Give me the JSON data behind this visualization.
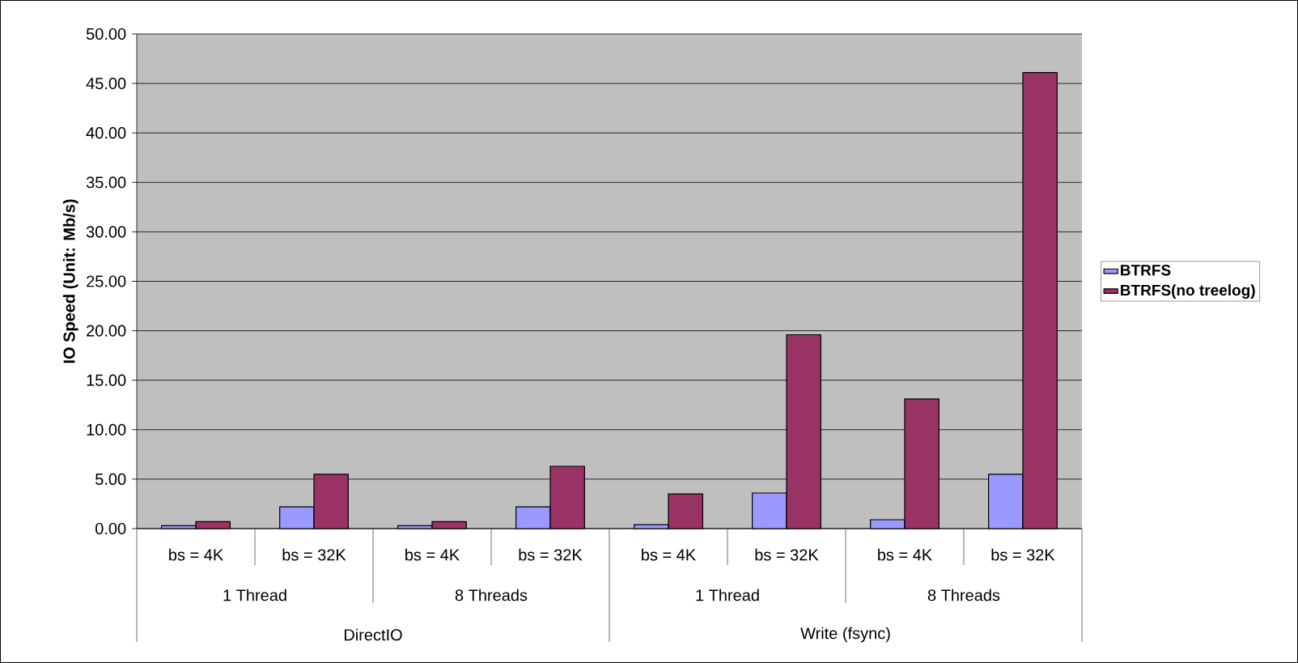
{
  "chart_data": {
    "type": "bar",
    "ylabel": "IO Speed (Unit: Mb/s)",
    "categories": [
      "bs = 4K",
      "bs = 32K",
      "bs = 4K",
      "bs = 32K",
      "bs = 4K",
      "bs = 32K",
      "bs = 4K",
      "bs = 32K"
    ],
    "series": [
      {
        "name": "BTRFS",
        "color": "#9999ff",
        "values": [
          0.3,
          2.2,
          0.3,
          2.2,
          0.4,
          3.6,
          0.9,
          5.5
        ]
      },
      {
        "name": "BTRFS(no treelog)",
        "color": "#993366",
        "values": [
          0.7,
          5.5,
          0.7,
          6.3,
          3.5,
          19.6,
          13.1,
          46.1
        ]
      }
    ],
    "annotations": [
      "1 Thread",
      "8 Threads",
      "1 Thread",
      "8 Threads",
      "DirectIO",
      "Write (fsync)"
    ],
    "ylim": [
      0,
      50
    ],
    "yticks": [
      {
        "value": 0,
        "label": "0.00"
      },
      {
        "value": 5,
        "label": "5.00"
      },
      {
        "value": 10,
        "label": "10.00"
      },
      {
        "value": 15,
        "label": "15.00"
      },
      {
        "value": 20,
        "label": "20.00"
      },
      {
        "value": 25,
        "label": "25.00"
      },
      {
        "value": 30,
        "label": "30.00"
      },
      {
        "value": 35,
        "label": "35.00"
      },
      {
        "value": 40,
        "label": "40.00"
      },
      {
        "value": 45,
        "label": "45.00"
      },
      {
        "value": 50,
        "label": "50.00"
      }
    ],
    "grid": "y",
    "legend": "right"
  }
}
